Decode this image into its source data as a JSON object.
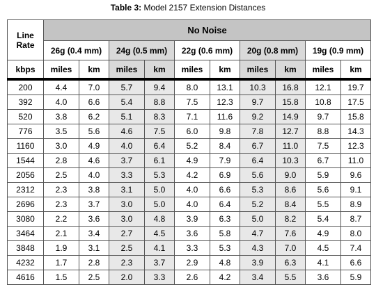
{
  "title": {
    "label": "Table 3:",
    "text": "Model 2157 Extension Distances"
  },
  "table": {
    "header": {
      "line_rate": "Line Rate",
      "condition": "No Noise",
      "gauges": [
        "26g (0.4 mm)",
        "24g (0.5 mm)",
        "22g (0.6 mm)",
        "20g (0.8 mm)",
        "19g (0.9 mm)"
      ],
      "units": [
        "kbps",
        "miles",
        "km",
        "miles",
        "km",
        "miles",
        "km",
        "miles",
        "km",
        "miles",
        "km"
      ]
    },
    "rows": [
      [
        "200",
        "4.4",
        "7.0",
        "5.7",
        "9.4",
        "8.0",
        "13.1",
        "10.3",
        "16.8",
        "12.1",
        "19.7"
      ],
      [
        "392",
        "4.0",
        "6.6",
        "5.4",
        "8.8",
        "7.5",
        "12.3",
        "9.7",
        "15.8",
        "10.8",
        "17.5"
      ],
      [
        "520",
        "3.8",
        "6.2",
        "5.1",
        "8.3",
        "7.1",
        "11.6",
        "9.2",
        "14.9",
        "9.7",
        "15.8"
      ],
      [
        "776",
        "3.5",
        "5.6",
        "4.6",
        "7.5",
        "6.0",
        "9.8",
        "7.8",
        "12.7",
        "8.8",
        "14.3"
      ],
      [
        "1160",
        "3.0",
        "4.9",
        "4.0",
        "6.4",
        "5.2",
        "8.4",
        "6.7",
        "11.0",
        "7.5",
        "12.3"
      ],
      [
        "1544",
        "2.8",
        "4.6",
        "3.7",
        "6.1",
        "4.9",
        "7.9",
        "6.4",
        "10.3",
        "6.7",
        "11.0"
      ],
      [
        "2056",
        "2.5",
        "4.0",
        "3.3",
        "5.3",
        "4.2",
        "6.9",
        "5.6",
        "9.0",
        "5.9",
        "9.6"
      ],
      [
        "2312",
        "2.3",
        "3.8",
        "3.1",
        "5.0",
        "4.0",
        "6.6",
        "5.3",
        "8.6",
        "5.6",
        "9.1"
      ],
      [
        "2696",
        "2.3",
        "3.7",
        "3.0",
        "5.0",
        "4.0",
        "6.4",
        "5.2",
        "8.4",
        "5.5",
        "8.9"
      ],
      [
        "3080",
        "2.2",
        "3.6",
        "3.0",
        "4.8",
        "3.9",
        "6.3",
        "5.0",
        "8.2",
        "5.4",
        "8.7"
      ],
      [
        "3464",
        "2.1",
        "3.4",
        "2.7",
        "4.5",
        "3.6",
        "5.8",
        "4.7",
        "7.6",
        "4.9",
        "8.0"
      ],
      [
        "3848",
        "1.9",
        "3.1",
        "2.5",
        "4.1",
        "3.3",
        "5.3",
        "4.3",
        "7.0",
        "4.5",
        "7.4"
      ],
      [
        "4232",
        "1.7",
        "2.8",
        "2.3",
        "3.7",
        "2.9",
        "4.8",
        "3.9",
        "6.3",
        "4.1",
        "6.6"
      ],
      [
        "4616",
        "1.5",
        "2.5",
        "2.0",
        "3.3",
        "2.6",
        "4.2",
        "3.4",
        "5.5",
        "3.6",
        "5.9"
      ]
    ]
  }
}
